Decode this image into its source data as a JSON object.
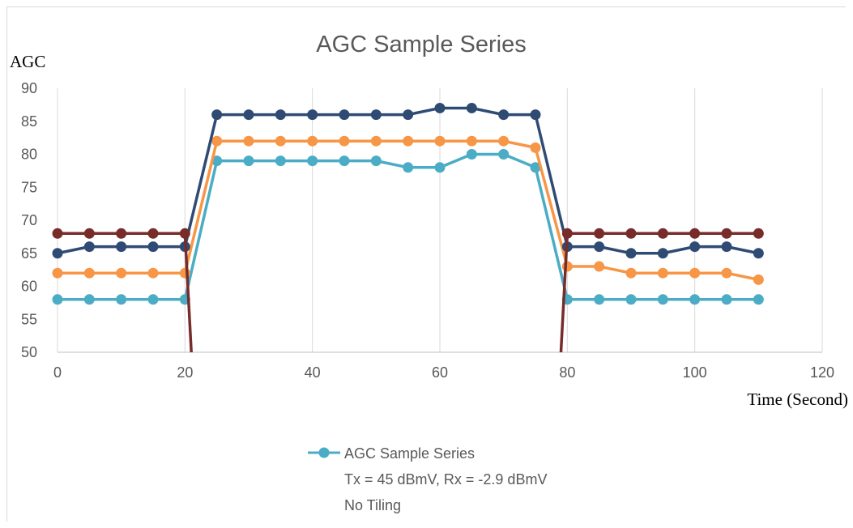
{
  "chart_data": {
    "type": "line",
    "title": "AGC Sample Series",
    "ylabel": "AGC",
    "xlabel": "Time (Second)",
    "xlim": [
      0,
      120
    ],
    "ylim": [
      50,
      90
    ],
    "xticks": [
      0,
      20,
      40,
      60,
      80,
      100,
      120
    ],
    "yticks": [
      50,
      55,
      60,
      65,
      70,
      75,
      80,
      85,
      90
    ],
    "x_tick_labels": [
      "0",
      "20",
      "40",
      "60",
      "80",
      "100",
      "120"
    ],
    "y_tick_labels": [
      "50",
      "55",
      "60",
      "65",
      "70",
      "75",
      "80",
      "85",
      "90"
    ],
    "grid": "vertical",
    "legend_lines": [
      "AGC Sample Series",
      "Tx = 45 dBmV, Rx = -2.9 dBmV",
      "No Tiling"
    ],
    "legend_position": "bottom",
    "series": [
      {
        "color": "#4BACC6",
        "points": [
          [
            0,
            58
          ],
          [
            5,
            58
          ],
          [
            10,
            58
          ],
          [
            15,
            58
          ],
          [
            20,
            58
          ],
          [
            25,
            79
          ],
          [
            30,
            79
          ],
          [
            35,
            79
          ],
          [
            40,
            79
          ],
          [
            45,
            79
          ],
          [
            50,
            79
          ],
          [
            55,
            78
          ],
          [
            60,
            78
          ],
          [
            65,
            80
          ],
          [
            70,
            80
          ],
          [
            75,
            78
          ],
          [
            80,
            58
          ],
          [
            85,
            58
          ],
          [
            90,
            58
          ],
          [
            95,
            58
          ],
          [
            100,
            58
          ],
          [
            105,
            58
          ],
          [
            110,
            58
          ]
        ]
      },
      {
        "color": "#F79646",
        "points": [
          [
            0,
            62
          ],
          [
            5,
            62
          ],
          [
            10,
            62
          ],
          [
            15,
            62
          ],
          [
            20,
            62
          ],
          [
            25,
            82
          ],
          [
            30,
            82
          ],
          [
            35,
            82
          ],
          [
            40,
            82
          ],
          [
            45,
            82
          ],
          [
            50,
            82
          ],
          [
            55,
            82
          ],
          [
            60,
            82
          ],
          [
            65,
            82
          ],
          [
            70,
            82
          ],
          [
            75,
            81
          ],
          [
            80,
            63
          ],
          [
            85,
            63
          ],
          [
            90,
            62
          ],
          [
            95,
            62
          ],
          [
            100,
            62
          ],
          [
            105,
            62
          ],
          [
            110,
            61
          ]
        ]
      },
      {
        "color": "#2F4B74",
        "points": [
          [
            0,
            65
          ],
          [
            5,
            66
          ],
          [
            10,
            66
          ],
          [
            15,
            66
          ],
          [
            20,
            66
          ],
          [
            25,
            86
          ],
          [
            30,
            86
          ],
          [
            35,
            86
          ],
          [
            40,
            86
          ],
          [
            45,
            86
          ],
          [
            50,
            86
          ],
          [
            55,
            86
          ],
          [
            60,
            87
          ],
          [
            65,
            87
          ],
          [
            70,
            86
          ],
          [
            75,
            86
          ],
          [
            80,
            66
          ],
          [
            85,
            66
          ],
          [
            90,
            65
          ],
          [
            95,
            65
          ],
          [
            100,
            66
          ],
          [
            105,
            66
          ],
          [
            110,
            65
          ]
        ]
      },
      {
        "color": "#772C2A",
        "segments": [
          {
            "points": [
              [
                0,
                68
              ],
              [
                5,
                68
              ],
              [
                10,
                68
              ],
              [
                15,
                68
              ],
              [
                20,
                68
              ],
              [
                21,
                50
              ]
            ],
            "markers": [
              0,
              1,
              2,
              3,
              4
            ]
          },
          {
            "points": [
              [
                79,
                50
              ],
              [
                80,
                68
              ],
              [
                85,
                68
              ],
              [
                90,
                68
              ],
              [
                95,
                68
              ],
              [
                100,
                68
              ],
              [
                105,
                68
              ],
              [
                110,
                68
              ]
            ],
            "markers": [
              1,
              2,
              3,
              4,
              5,
              6,
              7
            ]
          }
        ]
      }
    ]
  }
}
